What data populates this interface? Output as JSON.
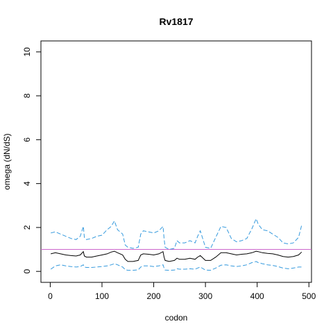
{
  "chart_data": {
    "type": "line",
    "title": "Rv1817",
    "xlabel": "codon",
    "ylabel": "omega (dN/dS)",
    "xlim": [
      -18,
      505
    ],
    "ylim": [
      -0.5,
      10.5
    ],
    "x_ticks": [
      0,
      100,
      200,
      300,
      400,
      500
    ],
    "y_ticks": [
      0,
      2,
      4,
      6,
      8,
      10
    ],
    "grid": false,
    "reference_line": {
      "y": 1,
      "color": "#cc66cc"
    },
    "colors": {
      "mean": "#000000",
      "bounds": "#3399dd"
    },
    "series": [
      {
        "role": "upper",
        "style": "dashed",
        "x": [
          1,
          10,
          20,
          30,
          40,
          50,
          58,
          64,
          66,
          70,
          80,
          90,
          100,
          110,
          118,
          124,
          130,
          140,
          145,
          150,
          160,
          170,
          175,
          180,
          190,
          200,
          210,
          218,
          220,
          222,
          230,
          240,
          245,
          250,
          260,
          270,
          280,
          285,
          290,
          300,
          310,
          320,
          330,
          340,
          350,
          360,
          370,
          380,
          390,
          398,
          402,
          410,
          420,
          430,
          440,
          450,
          460,
          470,
          480,
          486
        ],
        "y": [
          1.75,
          1.8,
          1.7,
          1.6,
          1.5,
          1.45,
          1.6,
          2.05,
          1.55,
          1.45,
          1.5,
          1.6,
          1.65,
          1.9,
          2.05,
          2.3,
          1.9,
          1.7,
          1.2,
          1.1,
          1.05,
          1.1,
          1.7,
          1.85,
          1.8,
          1.75,
          1.85,
          2.05,
          1.5,
          1.1,
          1.0,
          1.05,
          1.4,
          1.3,
          1.3,
          1.4,
          1.3,
          1.6,
          1.85,
          1.1,
          1.05,
          1.55,
          2.05,
          2.0,
          1.5,
          1.35,
          1.4,
          1.5,
          1.95,
          2.4,
          2.15,
          1.9,
          1.85,
          1.7,
          1.55,
          1.3,
          1.25,
          1.3,
          1.55,
          2.1
        ]
      },
      {
        "role": "mean",
        "style": "solid",
        "x": [
          1,
          10,
          20,
          30,
          40,
          50,
          58,
          64,
          66,
          70,
          80,
          90,
          100,
          110,
          118,
          124,
          130,
          140,
          145,
          150,
          160,
          170,
          175,
          180,
          190,
          200,
          210,
          218,
          220,
          222,
          230,
          240,
          245,
          250,
          260,
          270,
          280,
          285,
          290,
          300,
          310,
          320,
          330,
          340,
          350,
          360,
          370,
          380,
          390,
          398,
          402,
          410,
          420,
          430,
          440,
          450,
          460,
          470,
          480,
          486
        ],
        "y": [
          0.8,
          0.85,
          0.8,
          0.75,
          0.72,
          0.7,
          0.75,
          0.9,
          0.7,
          0.65,
          0.65,
          0.7,
          0.75,
          0.8,
          0.88,
          0.92,
          0.85,
          0.75,
          0.55,
          0.45,
          0.45,
          0.5,
          0.75,
          0.8,
          0.78,
          0.75,
          0.8,
          0.9,
          0.65,
          0.5,
          0.45,
          0.5,
          0.6,
          0.55,
          0.55,
          0.6,
          0.55,
          0.65,
          0.72,
          0.5,
          0.5,
          0.65,
          0.85,
          0.85,
          0.8,
          0.75,
          0.78,
          0.8,
          0.85,
          0.92,
          0.9,
          0.85,
          0.82,
          0.8,
          0.75,
          0.68,
          0.65,
          0.68,
          0.75,
          0.88
        ]
      },
      {
        "role": "lower",
        "style": "dashed",
        "x": [
          1,
          10,
          20,
          30,
          40,
          50,
          58,
          64,
          66,
          70,
          80,
          90,
          100,
          110,
          118,
          124,
          130,
          140,
          145,
          150,
          160,
          170,
          175,
          180,
          190,
          200,
          210,
          218,
          220,
          222,
          230,
          240,
          245,
          250,
          260,
          270,
          280,
          285,
          290,
          300,
          310,
          320,
          330,
          340,
          350,
          360,
          370,
          380,
          390,
          398,
          402,
          410,
          420,
          430,
          440,
          450,
          460,
          470,
          480,
          486
        ],
        "y": [
          0.1,
          0.25,
          0.3,
          0.25,
          0.22,
          0.2,
          0.22,
          0.3,
          0.2,
          0.18,
          0.18,
          0.2,
          0.22,
          0.25,
          0.3,
          0.35,
          0.3,
          0.2,
          0.08,
          0.05,
          0.05,
          0.07,
          0.2,
          0.25,
          0.25,
          0.22,
          0.25,
          0.3,
          0.15,
          0.06,
          0.05,
          0.06,
          0.12,
          0.1,
          0.1,
          0.12,
          0.1,
          0.15,
          0.2,
          0.06,
          0.05,
          0.15,
          0.28,
          0.3,
          0.25,
          0.22,
          0.25,
          0.3,
          0.4,
          0.45,
          0.4,
          0.35,
          0.3,
          0.27,
          0.22,
          0.15,
          0.12,
          0.15,
          0.2,
          0.2
        ]
      }
    ]
  }
}
